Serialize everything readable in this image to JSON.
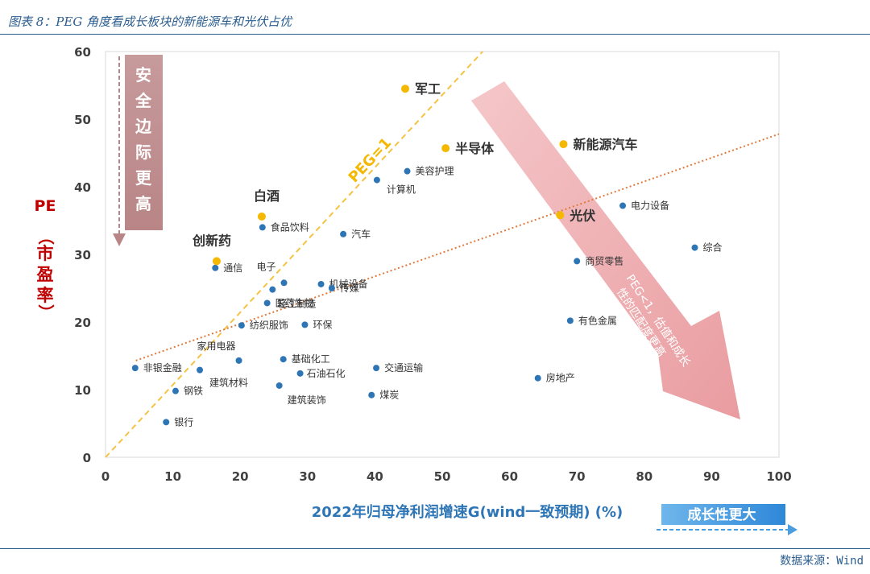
{
  "header": {
    "title": "图表 8：PEG 角度看成长板块的新能源车和光伏占优"
  },
  "source": "数据来源：Wind",
  "colors": {
    "point": "#2e75b6",
    "highlight": "#f5b800",
    "peg_line": "#f5c242",
    "trend": "#e07a3c",
    "accent": "#c00000"
  },
  "annotations": {
    "safety_margin": "安全边际更高",
    "growth_label": "成长性更大",
    "peg_line_label": "PEG=1",
    "arrow_text_line1": "PEG<1，估值和成长",
    "arrow_text_line2": "性的匹配度更高",
    "y_title_pe": "PE",
    "y_title_paren_open": "（",
    "y_title_cn": "市盈率",
    "y_title_paren_close": "）"
  },
  "chart_data": {
    "type": "scatter",
    "xlabel": "2022年归母净利润增速G(wind一致预期) (%)",
    "ylabel": "PE（市盈率）",
    "xlim": [
      0,
      100
    ],
    "ylim": [
      0,
      60
    ],
    "xticks": [
      "0",
      "10",
      "20",
      "30",
      "40",
      "50",
      "60",
      "70",
      "80",
      "90",
      "100"
    ],
    "yticks": [
      "0",
      "10",
      "20",
      "30",
      "40",
      "50",
      "60"
    ],
    "highlight_points": [
      {
        "label": "军工",
        "x": 44.5,
        "y": 54.5
      },
      {
        "label": "半导体",
        "x": 50.5,
        "y": 45.7
      },
      {
        "label": "新能源汽车",
        "x": 68.0,
        "y": 46.3
      },
      {
        "label": "白酒",
        "x": 23.2,
        "y": 35.6
      },
      {
        "label": "光伏",
        "x": 67.5,
        "y": 35.8
      },
      {
        "label": "创新药",
        "x": 16.5,
        "y": 29.0
      }
    ],
    "points": [
      {
        "label": "美容护理",
        "x": 44.8,
        "y": 42.3
      },
      {
        "label": "计算机",
        "x": 40.3,
        "y": 41.0
      },
      {
        "label": "电力设备",
        "x": 76.8,
        "y": 37.2
      },
      {
        "label": "食品饮料",
        "x": 23.3,
        "y": 34.0
      },
      {
        "label": "汽车",
        "x": 35.3,
        "y": 33.0
      },
      {
        "label": "综合",
        "x": 87.5,
        "y": 31.0
      },
      {
        "label": "商贸零售",
        "x": 70.0,
        "y": 29.0
      },
      {
        "label": "通信",
        "x": 16.3,
        "y": 28.0
      },
      {
        "label": "电子",
        "x": 26.5,
        "y": 25.8
      },
      {
        "label": "机械设备",
        "x": 32.0,
        "y": 25.6
      },
      {
        "label": "传媒",
        "x": 33.6,
        "y": 25.0
      },
      {
        "label": "医药生物",
        "x": 24.0,
        "y": 22.8
      },
      {
        "label": "轻工制造",
        "x": 24.8,
        "y": 24.8
      },
      {
        "label": "纺织服饰",
        "x": 20.2,
        "y": 19.5
      },
      {
        "label": "环保",
        "x": 29.6,
        "y": 19.6
      },
      {
        "label": "有色金属",
        "x": 69.0,
        "y": 20.2
      },
      {
        "label": "家用电器",
        "x": 19.8,
        "y": 14.3
      },
      {
        "label": "基础化工",
        "x": 26.4,
        "y": 14.5
      },
      {
        "label": "非银金融",
        "x": 4.4,
        "y": 13.2
      },
      {
        "label": "交通运输",
        "x": 40.2,
        "y": 13.2
      },
      {
        "label": "石油石化",
        "x": 28.9,
        "y": 12.4
      },
      {
        "label": "建筑材料",
        "x": 14.0,
        "y": 12.9
      },
      {
        "label": "房地产",
        "x": 64.2,
        "y": 11.7
      },
      {
        "label": "钢铁",
        "x": 10.4,
        "y": 9.8
      },
      {
        "label": "建筑装饰",
        "x": 25.8,
        "y": 10.6
      },
      {
        "label": "煤炭",
        "x": 39.5,
        "y": 9.2
      },
      {
        "label": "银行",
        "x": 9.0,
        "y": 5.2
      }
    ],
    "peg_line": {
      "x1": 0,
      "y1": 0,
      "x2": 56,
      "y2": 60
    },
    "trend_line": {
      "x1": 4.5,
      "y1": 14.3,
      "x2": 100,
      "y2": 47.8
    }
  }
}
